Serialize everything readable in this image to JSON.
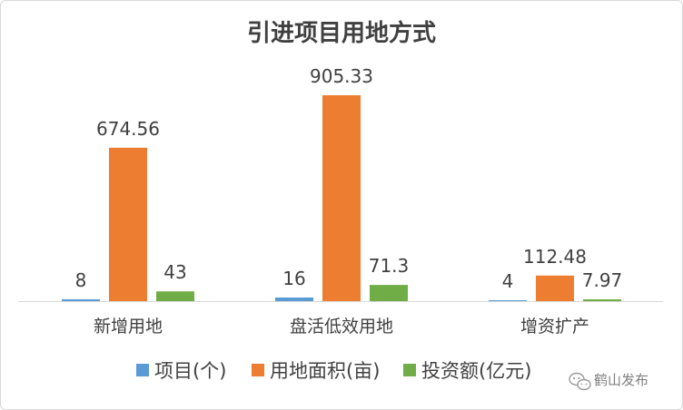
{
  "chart_data": {
    "type": "bar",
    "title": "引进项目用地方式",
    "categories": [
      "新增用地",
      "盘活低效用地",
      "增资扩产"
    ],
    "series": [
      {
        "name": "项目(个)",
        "color": "#5b9bd5",
        "values": [
          8,
          16,
          4
        ],
        "labels": [
          "8",
          "16",
          "4"
        ]
      },
      {
        "name": "用地面积(亩)",
        "color": "#ed7d31",
        "values": [
          674.56,
          905.33,
          112.48
        ],
        "labels": [
          "674.56",
          "905.33",
          "112.48"
        ]
      },
      {
        "name": "投资额(亿元)",
        "color": "#70ad47",
        "values": [
          43,
          71.3,
          7.97
        ],
        "labels": [
          "43",
          "71.3",
          "7.97"
        ]
      }
    ],
    "xlabel": "",
    "ylabel": "",
    "grid": false,
    "legend_position": "bottom",
    "axis_color": "#d9d9d9"
  },
  "watermark": {
    "text": "鹤山发布",
    "icon": "wechat-icon"
  }
}
